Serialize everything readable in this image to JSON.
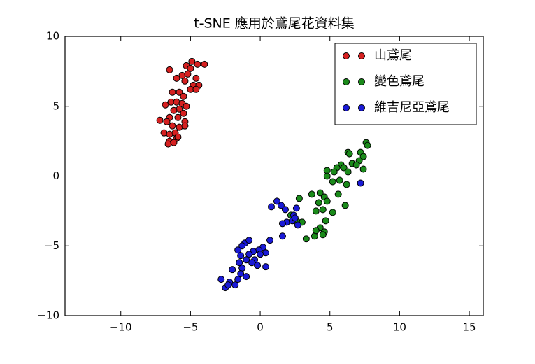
{
  "chart_data": {
    "type": "scatter",
    "title": "t-SNE 應用於鳶尾花資料集",
    "xlim": [
      -14,
      16
    ],
    "xticks": [
      {
        "value": -10,
        "label": "−10"
      },
      {
        "value": -5,
        "label": "−5"
      },
      0,
      5,
      10,
      15
    ],
    "ylim": [
      -10,
      10
    ],
    "yticks": [
      {
        "value": -10,
        "label": "−10"
      },
      {
        "value": -5,
        "label": "−5"
      },
      0,
      5,
      10
    ],
    "grid": false,
    "legend": "upper right",
    "series": [
      {
        "name": "山鳶尾",
        "color": "#d62020",
        "x": [
          -4.9,
          -4.5,
          -4.0,
          -5.3,
          -5.0,
          -6.5,
          -5.6,
          -5.2,
          -4.6,
          -6.0,
          -5.4,
          -4.8,
          -4.4,
          -5.0,
          -4.6,
          -6.3,
          -5.8,
          -5.5,
          -6.8,
          -6.4,
          -6.0,
          -5.6,
          -5.3,
          -5.8,
          -6.2,
          -5.5,
          -6.5,
          -5.9,
          -7.2,
          -6.7,
          -5.4,
          -6.3,
          -5.8,
          -5.4,
          -6.9,
          -6.5,
          -6.1,
          -6.0,
          -6.5,
          -6.6,
          -6.2,
          -5.9
        ],
        "y": [
          8.2,
          8.0,
          8.0,
          7.9,
          7.7,
          7.6,
          7.2,
          7.3,
          7.0,
          7.0,
          6.8,
          6.5,
          6.5,
          6.2,
          6.2,
          6.0,
          6.0,
          5.7,
          5.1,
          5.3,
          5.3,
          5.2,
          5.0,
          4.8,
          4.7,
          4.5,
          4.2,
          4.2,
          4.0,
          3.9,
          3.9,
          3.6,
          3.5,
          3.6,
          3.1,
          3.0,
          3.1,
          2.7,
          2.5,
          2.3,
          2.4,
          2.8
        ]
      },
      {
        "name": "變色鳶尾",
        "color": "#1a8a1a",
        "x": [
          7.6,
          7.7,
          6.3,
          6.4,
          7.2,
          7.4,
          5.8,
          6.0,
          6.6,
          7.1,
          6.9,
          5.5,
          4.8,
          5.3,
          6.3,
          7.4,
          4.8,
          5.2,
          6.2,
          5.7,
          4.3,
          3.7,
          4.6,
          5.6,
          4.2,
          4.8,
          2.8,
          4.0,
          4.5,
          6.1,
          5.2,
          2.2,
          3.0,
          4.7,
          4.3,
          4.6,
          3.9,
          4.5,
          3.3,
          4.0,
          2.6
        ],
        "y": [
          2.4,
          2.2,
          1.7,
          1.6,
          1.7,
          1.4,
          0.8,
          0.6,
          0.9,
          1.1,
          0.8,
          0.6,
          0.4,
          0.3,
          0.3,
          0.5,
          0.0,
          -0.4,
          -0.6,
          -0.3,
          -1.2,
          -1.3,
          -1.5,
          -1.3,
          -1.9,
          -1.8,
          -1.6,
          -2.5,
          -2.4,
          -2.1,
          -2.6,
          -2.8,
          -3.3,
          -3.2,
          -3.7,
          -4.0,
          -4.3,
          -4.2,
          -4.5,
          -3.9,
          -3.2
        ]
      },
      {
        "name": "維吉尼亞鳶尾",
        "color": "#1a1ad6",
        "x": [
          7.2,
          1.5,
          0.8,
          1.8,
          2.6,
          1.2,
          2.4,
          1.9,
          2.3,
          1.6,
          2.7,
          2.5,
          1.6,
          0.7,
          -1.1,
          -0.8,
          -1.3,
          0.2,
          -0.1,
          -0.5,
          0.4,
          -1.6,
          -1.4,
          -0.8,
          0.0,
          -0.4,
          -1.0,
          -1.5,
          -0.6,
          -1.3,
          -0.2,
          0.4,
          -2.0,
          -1.4,
          -1.0,
          -1.6,
          -2.8,
          -2.2,
          -1.8,
          -2.5,
          -2.3
        ],
        "y": [
          -0.5,
          -2.1,
          -2.2,
          -2.4,
          -2.3,
          -1.8,
          -2.8,
          -3.3,
          -3.2,
          -3.4,
          -3.5,
          -3.0,
          -4.3,
          -4.6,
          -4.8,
          -4.6,
          -5.0,
          -5.1,
          -5.3,
          -5.4,
          -5.5,
          -5.3,
          -5.7,
          -5.6,
          -5.6,
          -6.0,
          -6.0,
          -6.2,
          -6.2,
          -6.6,
          -6.4,
          -6.5,
          -6.7,
          -7.0,
          -7.2,
          -7.4,
          -7.4,
          -7.6,
          -7.8,
          -8.0,
          -7.8
        ]
      }
    ]
  }
}
